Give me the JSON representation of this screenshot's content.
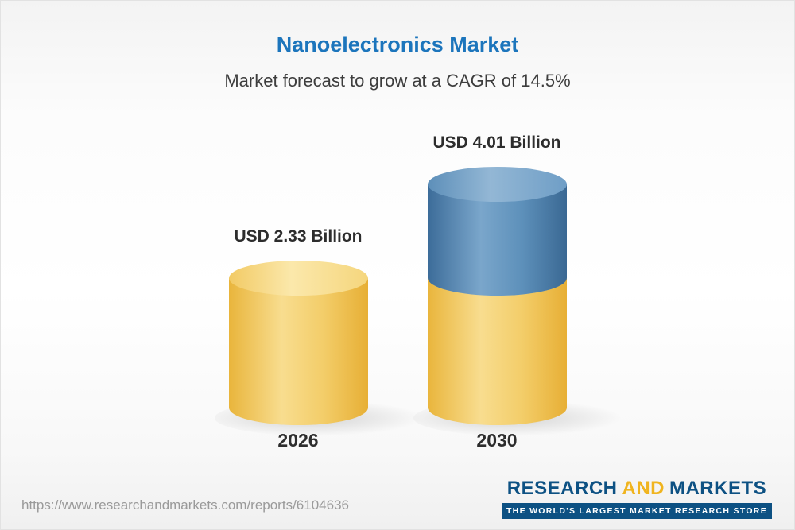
{
  "header": {
    "title": "Nanoelectronics Market",
    "subtitle": "Market forecast to grow at a CAGR of 14.5%"
  },
  "chart_data": {
    "type": "bar",
    "title": "Nanoelectronics Market",
    "subtitle": "Market forecast to grow at a CAGR of 14.5%",
    "unit": "USD Billion",
    "cagr_percent": 14.5,
    "categories": [
      "2026",
      "2030"
    ],
    "values": [
      2.33,
      4.01
    ],
    "bars": [
      {
        "category": "2026",
        "value": 2.33,
        "label": "USD 2.33 Billion",
        "segments": [
          {
            "color": "yellow",
            "value": 2.33
          }
        ]
      },
      {
        "category": "2030",
        "value": 4.01,
        "label": "USD 4.01 Billion",
        "segments": [
          {
            "color": "yellow",
            "value": 2.33
          },
          {
            "color": "blue",
            "value": 1.68
          }
        ]
      }
    ],
    "colors": {
      "yellow": "#F3CD69",
      "blue": "#4C7FA9"
    },
    "axes": "none",
    "grid": false,
    "legend": "none"
  },
  "footer": {
    "source_url": "https://www.researchandmarkets.com/reports/6104636",
    "logo": {
      "part1": "RESEARCH",
      "part2": "AND",
      "part3": "MARKETS",
      "tagline": "THE WORLD'S LARGEST MARKET RESEARCH STORE",
      "navy_color": "#0D5183",
      "gold_color": "#F0B41E"
    }
  }
}
